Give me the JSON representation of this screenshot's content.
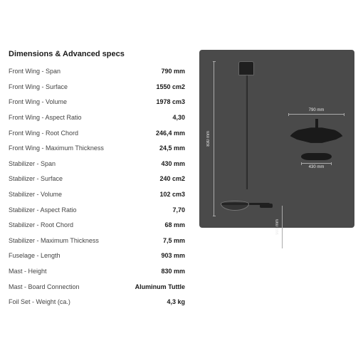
{
  "title": "Dimensions & Advanced specs",
  "specs": [
    {
      "label": "Front Wing - Span",
      "value": "790 mm"
    },
    {
      "label": "Front Wing - Surface",
      "value": "1550 cm2"
    },
    {
      "label": "Front Wing - Volume",
      "value": "1978 cm3"
    },
    {
      "label": "Front Wing - Aspect Ratio",
      "value": "4,30"
    },
    {
      "label": "Front Wing - Root Chord",
      "value": "246,4 mm"
    },
    {
      "label": "Front Wing - Maximum Thickness",
      "value": "24,5 mm"
    },
    {
      "label": "Stabilizer - Span",
      "value": "430 mm"
    },
    {
      "label": "Stabilizer - Surface",
      "value": "240 cm2"
    },
    {
      "label": "Stabilizer - Volume",
      "value": "102 cm3"
    },
    {
      "label": "Stabilizer - Aspect Ratio",
      "value": "7,70"
    },
    {
      "label": "Stabilizer - Root Chord",
      "value": "68 mm"
    },
    {
      "label": "Stabilizer - Maximum Thickness",
      "value": "7,5 mm"
    },
    {
      "label": "Fuselage - Length",
      "value": "903 mm"
    },
    {
      "label": "Mast - Height",
      "value": "830 mm"
    },
    {
      "label": "Mast - Board Connection",
      "value": "Aluminum Tuttle"
    },
    {
      "label": "Foil Set - Weight (ca.)",
      "value": "4,3 kg"
    }
  ],
  "diagram": {
    "mast_height": "830 mm",
    "wing_span": "790 mm",
    "fuselage_len": "903 mm",
    "stab_span": "430 mm",
    "bg_color": "#4a4a4a",
    "line_color": "#aaaaaa",
    "label_color": "#e8e8e8"
  }
}
